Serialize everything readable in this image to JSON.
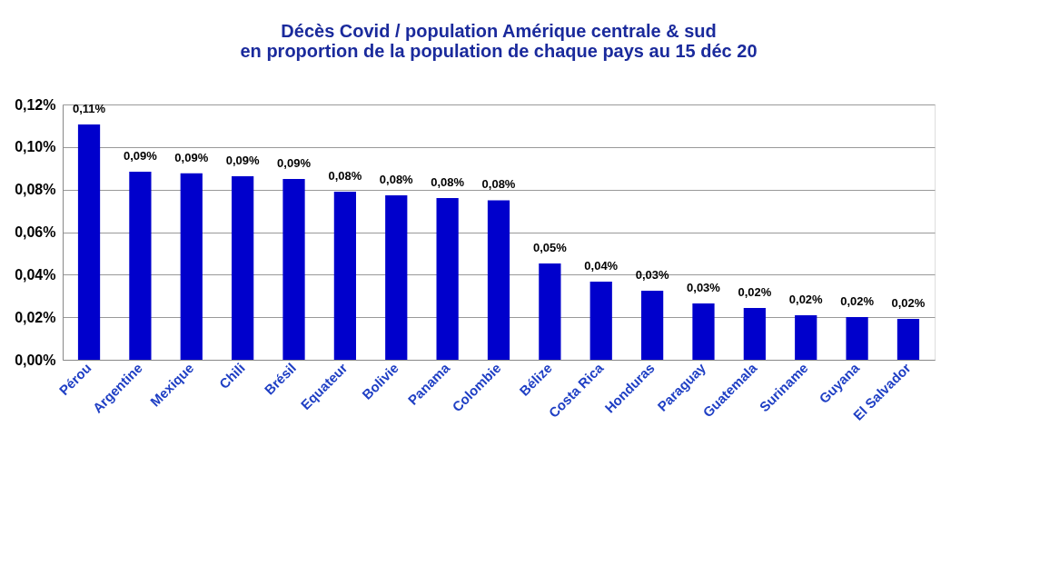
{
  "chart_data": {
    "type": "bar",
    "title": [
      "Décès Covid / population Amérique centrale & sud",
      "en proportion de la population de chaque pays au 15 déc 20"
    ],
    "categories": [
      "Pérou",
      "Argentine",
      "Mexique",
      "Chili",
      "Brésil",
      "Equateur",
      "Bolivie",
      "Panama",
      "Colombie",
      "Bélize",
      "Costa Rica",
      "Honduras",
      "Paraguay",
      "Guatemala",
      "Suriname",
      "Guyana",
      "El Salvador"
    ],
    "values": [
      0.1106,
      0.0884,
      0.0876,
      0.0863,
      0.085,
      0.079,
      0.0773,
      0.076,
      0.075,
      0.0453,
      0.0367,
      0.0325,
      0.0265,
      0.0243,
      0.0209,
      0.0201,
      0.0192
    ],
    "value_labels": [
      "0,11%",
      "0,09%",
      "0,09%",
      "0,09%",
      "0,09%",
      "0,08%",
      "0,08%",
      "0,08%",
      "0,08%",
      "0,05%",
      "0,04%",
      "0,03%",
      "0,03%",
      "0,02%",
      "0,02%",
      "0,02%",
      "0,02%"
    ],
    "color": "#0000cc",
    "ylim": [
      0,
      0.12
    ],
    "yticks": [
      {
        "value": 0,
        "label": "0,00%"
      },
      {
        "value": 0.02,
        "label": "0,02%"
      },
      {
        "value": 0.04,
        "label": "0,04%"
      },
      {
        "value": 0.06,
        "label": "0,06%"
      },
      {
        "value": 0.08,
        "label": "0,08%"
      },
      {
        "value": 0.1,
        "label": "0,10%"
      },
      {
        "value": 0.12,
        "label": "0,12%"
      }
    ],
    "grid": "y"
  }
}
